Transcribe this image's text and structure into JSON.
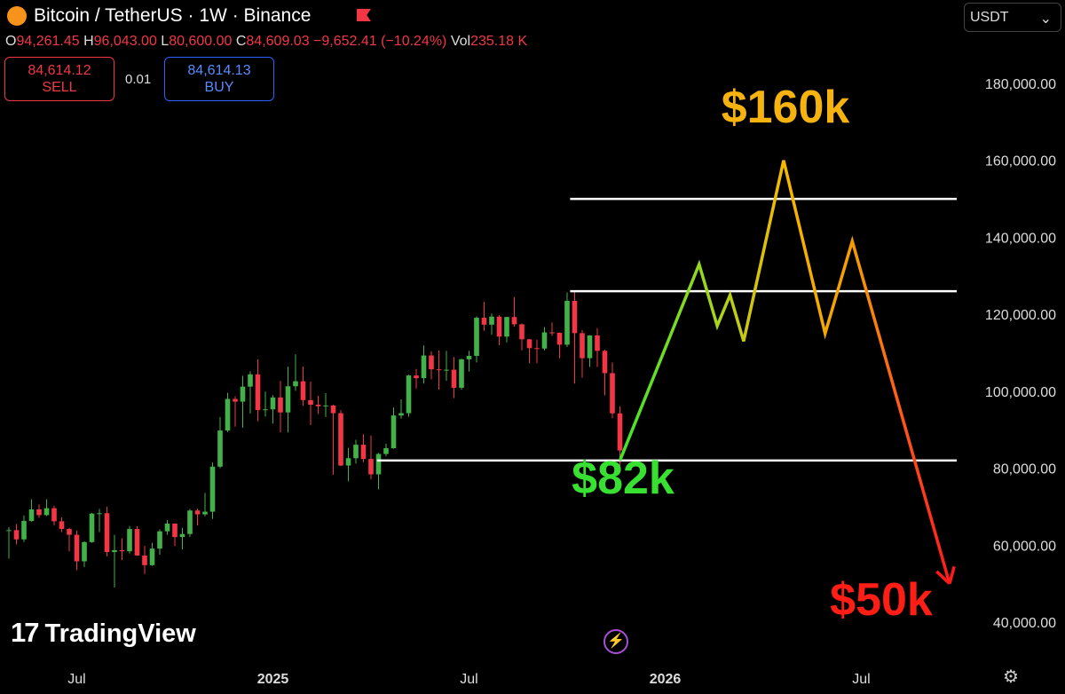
{
  "header": {
    "title": "Bitcoin / TetherUS · 1W · Binance",
    "ohlc": [
      {
        "label": "O",
        "value": "94,261.45"
      },
      {
        "label": "H",
        "value": "96,043.00"
      },
      {
        "label": "L",
        "value": "80,600.00"
      },
      {
        "label": "C",
        "value": "84,609.03"
      }
    ],
    "change": "−9,652.41 (−10.24%)",
    "vol_label": "Vol",
    "vol": "235.18 K",
    "sell_price": "84,614.12",
    "sell_label": "SELL",
    "spread": "0.01",
    "buy_price": "84,614.13",
    "buy_label": "BUY",
    "currency": "USDT",
    "brand": "TradingView"
  },
  "chart_data": {
    "type": "candlestick",
    "up_color": "#44b049",
    "down_color": "#f23645",
    "open": [
      63800,
      63900,
      61500,
      66300,
      69300,
      67800,
      69600,
      66200,
      64200,
      62700,
      55800,
      60800,
      68200,
      68300,
      58200,
      58700,
      58400,
      64200,
      57300,
      54800,
      59100,
      63600,
      65600,
      62100,
      62900,
      69000,
      68000,
      68700,
      80400,
      89800,
      98000,
      97300,
      101200,
      104400,
      95100,
      95300,
      98400,
      94500,
      101300,
      102600,
      97700,
      96500,
      96100,
      96300,
      94300,
      80700,
      82600,
      86100,
      82400,
      78400,
      83700,
      85200,
      93700,
      94300,
      104100,
      103400,
      109300,
      105700,
      105600,
      105600,
      100900,
      108300,
      109200,
      119100,
      117300,
      119400,
      114200,
      119300,
      117400,
      113500,
      111200,
      111100,
      115300,
      115200,
      112100,
      123500,
      115100,
      108600,
      114500,
      110500,
      104700,
      94261.45
    ],
    "high": [
      64700,
      65500,
      67700,
      71900,
      70600,
      71900,
      70200,
      67200,
      64500,
      63800,
      61000,
      68400,
      69400,
      70000,
      62700,
      61800,
      65000,
      64900,
      59800,
      60600,
      64100,
      66500,
      65700,
      64500,
      69400,
      69500,
      73600,
      81500,
      93300,
      99600,
      98700,
      104000,
      105200,
      108300,
      99900,
      99000,
      102700,
      106400,
      109600,
      106400,
      102500,
      98800,
      99500,
      96500,
      95100,
      85300,
      87400,
      88800,
      88500,
      84000,
      86400,
      95800,
      97900,
      104300,
      105800,
      111900,
      110400,
      110600,
      110500,
      108900,
      108500,
      110500,
      119500,
      123200,
      120200,
      119800,
      119300,
      124500,
      117600,
      113600,
      113400,
      116700,
      117900,
      115300,
      125700,
      126200,
      115900,
      114600,
      116400,
      110800,
      107500,
      96043
    ],
    "low": [
      56500,
      60200,
      60800,
      66100,
      67100,
      67600,
      65100,
      63400,
      58400,
      53500,
      54300,
      60600,
      63400,
      57100,
      49000,
      56100,
      57800,
      57200,
      52500,
      54600,
      57500,
      62700,
      59800,
      58900,
      62100,
      65100,
      67500,
      66800,
      80000,
      89400,
      90800,
      90500,
      94200,
      92200,
      93400,
      91600,
      89300,
      89300,
      100100,
      96200,
      91200,
      94100,
      93300,
      78300,
      80500,
      76600,
      81200,
      81600,
      77100,
      74500,
      83100,
      85100,
      92900,
      93400,
      100700,
      102000,
      103100,
      100400,
      102700,
      98200,
      100400,
      105100,
      107500,
      115700,
      114700,
      112000,
      112700,
      116800,
      110600,
      107300,
      107300,
      110600,
      114400,
      108600,
      111500,
      102000,
      103500,
      106300,
      106300,
      98900,
      93000,
      80600
    ],
    "close": [
      63900,
      61500,
      66300,
      69300,
      67800,
      69600,
      66200,
      64200,
      62700,
      55800,
      60800,
      68200,
      68300,
      58200,
      58700,
      58400,
      64200,
      57300,
      54800,
      59100,
      63600,
      65600,
      62100,
      62900,
      69000,
      68000,
      68700,
      80400,
      89800,
      98000,
      97300,
      101200,
      104400,
      95100,
      95300,
      98400,
      94500,
      101300,
      102600,
      97700,
      96500,
      96100,
      96300,
      94300,
      80700,
      82600,
      86100,
      82400,
      78400,
      83700,
      85200,
      93700,
      94300,
      104100,
      103400,
      109300,
      105700,
      105600,
      105600,
      100900,
      108300,
      109200,
      119100,
      117300,
      119400,
      114200,
      119300,
      117400,
      113500,
      111200,
      111100,
      115300,
      115200,
      112100,
      123500,
      115100,
      108600,
      114500,
      110500,
      104700,
      94261.45,
      84609.03
    ],
    "time_labels": [
      "Jul",
      "2025",
      "Jul",
      "2026",
      "Jul"
    ],
    "ylim": [
      31000,
      195000
    ],
    "yticks": [
      {
        "value": 40000,
        "label": "40,000.00"
      },
      {
        "value": 60000,
        "label": "60,000.00"
      },
      {
        "value": 80000,
        "label": "80,000.00"
      },
      {
        "value": 100000,
        "label": "100,000.00"
      },
      {
        "value": 120000,
        "label": "120,000.00"
      },
      {
        "value": 140000,
        "label": "140,000.00"
      },
      {
        "value": 160000,
        "label": "160,000.00"
      },
      {
        "value": 180000,
        "label": "180,000.00"
      }
    ],
    "levels": [
      150000,
      126000,
      82000
    ],
    "projection": [
      82000,
      133000,
      117000,
      125000,
      113000,
      160000,
      115000,
      139000,
      50000
    ],
    "annotations": [
      {
        "text": "$160k",
        "color": "#f6b20e"
      },
      {
        "text": "$82k",
        "color": "#38e032"
      },
      {
        "text": "$50k",
        "color": "#ff1e16"
      }
    ]
  }
}
